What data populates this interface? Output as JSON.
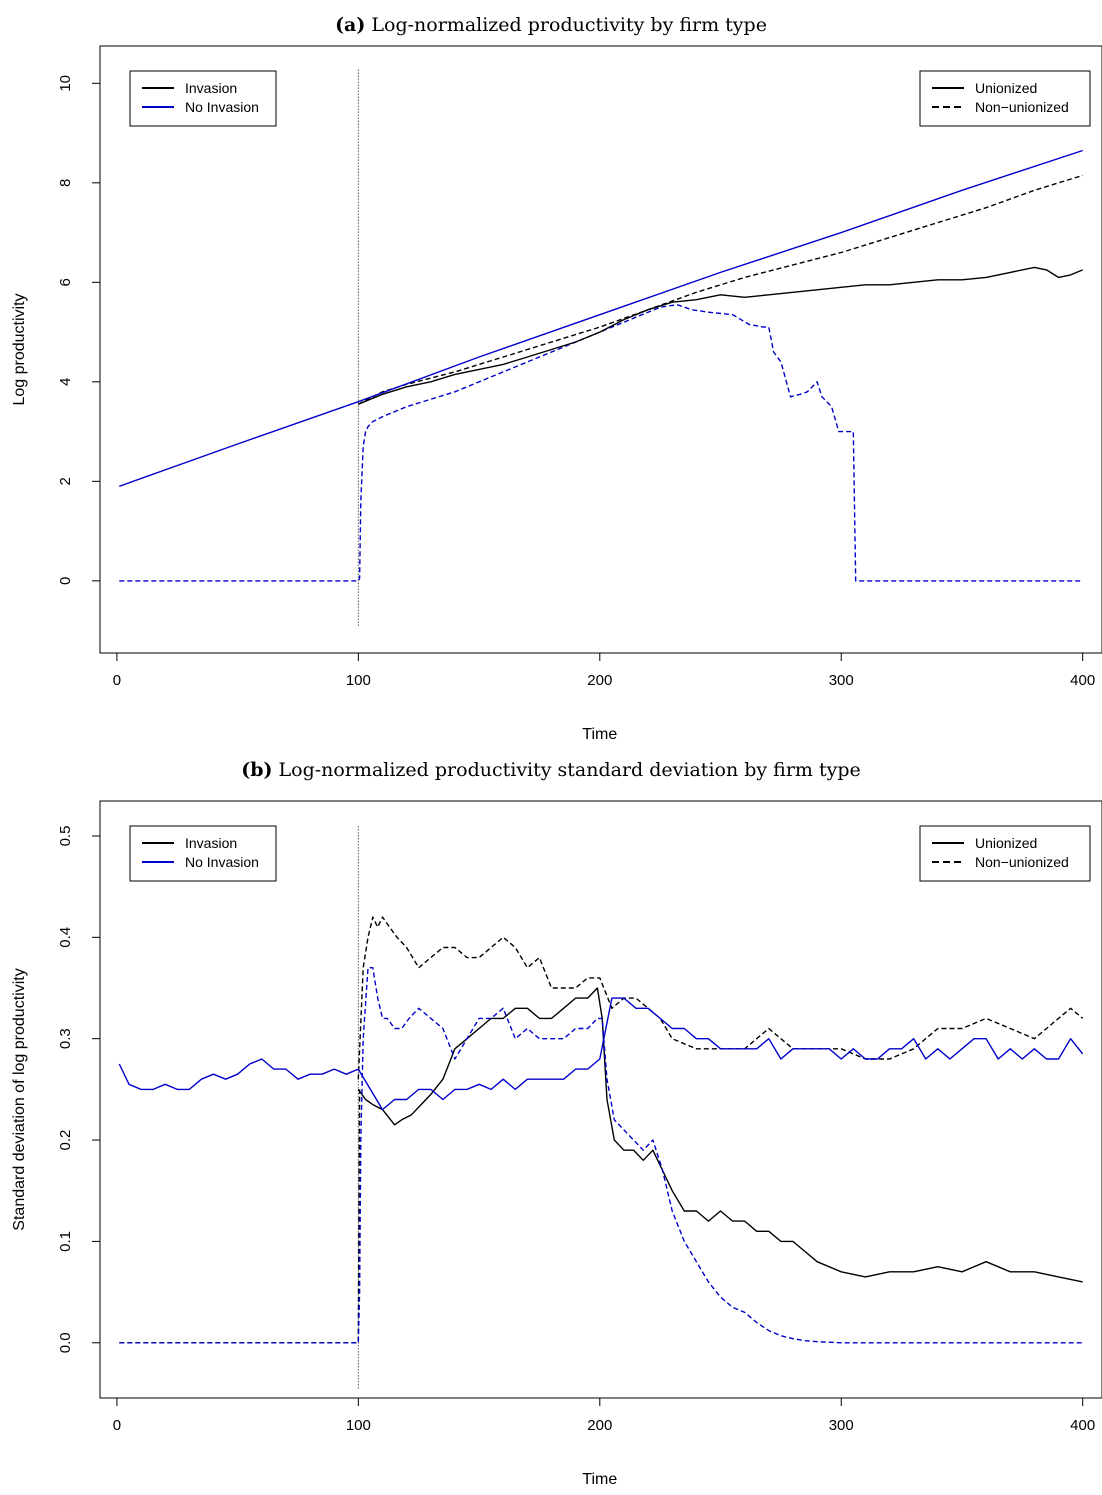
{
  "chart_data": [
    {
      "type": "line",
      "panel_label": "(a)",
      "title": "Log-normalized productivity by firm type",
      "xlabel": "Time",
      "ylabel": "Log productivity",
      "xlim": [
        -7,
        408
      ],
      "ylim": [
        -1.45,
        10.75
      ],
      "xticks": [
        0,
        100,
        200,
        300,
        400
      ],
      "yticks": [
        0,
        2,
        4,
        6,
        8,
        10
      ],
      "vline": {
        "x": 100,
        "y_range": [
          -0.9,
          10.3
        ],
        "style": "dotted"
      },
      "legend_color": {
        "position": "top-left",
        "entries": [
          "Invasion",
          "No Invasion"
        ],
        "colors": [
          "#000000",
          "#0000cc"
        ]
      },
      "legend_style": {
        "position": "top-right",
        "entries": [
          "Unionized",
          "Non−unionized"
        ],
        "dashes": [
          "solid",
          "dashed"
        ]
      },
      "series": [
        {
          "key": "no_invasion_non_union",
          "color": "#0000cc",
          "dash": "dashed",
          "x": [
            1,
            100,
            100.5,
            101,
            102,
            103,
            104,
            106,
            110,
            120,
            140,
            160,
            180,
            200,
            215,
            225,
            232,
            238,
            245,
            255,
            262,
            268,
            270,
            272,
            275,
            279,
            283,
            286,
            288,
            290,
            292,
            294,
            296,
            299,
            303,
            305,
            306,
            400
          ],
          "y": [
            0,
            0,
            0.05,
            1.6,
            2.7,
            3.0,
            3.1,
            3.2,
            3.3,
            3.5,
            3.8,
            4.2,
            4.6,
            5.0,
            5.3,
            5.5,
            5.55,
            5.45,
            5.4,
            5.35,
            5.15,
            5.1,
            5.1,
            4.6,
            4.4,
            3.7,
            3.75,
            3.8,
            3.9,
            4.0,
            3.7,
            3.6,
            3.5,
            3.0,
            3.0,
            3.0,
            0,
            0
          ]
        },
        {
          "key": "invasion_non_union",
          "color": "#000000",
          "dash": "dashed",
          "x": [
            100,
            110,
            120,
            140,
            160,
            180,
            200,
            220,
            240,
            260,
            280,
            300,
            320,
            340,
            360,
            380,
            400
          ],
          "y": [
            3.55,
            3.8,
            3.95,
            4.2,
            4.5,
            4.8,
            5.1,
            5.45,
            5.8,
            6.1,
            6.35,
            6.6,
            6.9,
            7.2,
            7.5,
            7.85,
            8.15
          ]
        },
        {
          "key": "invasion_union",
          "color": "#000000",
          "dash": "solid",
          "x": [
            100,
            110,
            120,
            130,
            140,
            150,
            160,
            170,
            180,
            190,
            200,
            210,
            220,
            230,
            240,
            250,
            260,
            270,
            280,
            290,
            300,
            310,
            320,
            330,
            340,
            350,
            360,
            370,
            380,
            385,
            390,
            395,
            400
          ],
          "y": [
            3.55,
            3.75,
            3.9,
            4.0,
            4.15,
            4.25,
            4.35,
            4.5,
            4.65,
            4.8,
            5.0,
            5.25,
            5.45,
            5.6,
            5.65,
            5.75,
            5.7,
            5.75,
            5.8,
            5.85,
            5.9,
            5.95,
            5.95,
            6.0,
            6.05,
            6.05,
            6.1,
            6.2,
            6.3,
            6.25,
            6.1,
            6.15,
            6.25
          ]
        },
        {
          "key": "no_invasion_union",
          "color": "#0000cc",
          "dash": "solid",
          "x": [
            1,
            50,
            100,
            150,
            200,
            250,
            300,
            350,
            400
          ],
          "y": [
            1.9,
            2.75,
            3.6,
            4.5,
            5.35,
            6.2,
            7.0,
            7.85,
            8.65
          ]
        }
      ]
    },
    {
      "type": "line",
      "panel_label": "(b)",
      "title": "Log-normalized productivity standard deviation by firm type",
      "xlabel": "Time",
      "ylabel": "Standard deviation of log productivity",
      "xlim": [
        -7,
        408
      ],
      "ylim": [
        -0.0545,
        0.5345
      ],
      "xticks": [
        0,
        100,
        200,
        300,
        400
      ],
      "yticks": [
        0.0,
        0.1,
        0.2,
        0.3,
        0.4,
        0.5
      ],
      "vline": {
        "x": 100,
        "y_range": [
          -0.045,
          0.51
        ],
        "style": "dotted"
      },
      "legend_color": {
        "position": "top-left",
        "entries": [
          "Invasion",
          "No Invasion"
        ],
        "colors": [
          "#000000",
          "#0000cc"
        ]
      },
      "legend_style": {
        "position": "top-right",
        "entries": [
          "Unionized",
          "Non−unionized"
        ],
        "dashes": [
          "solid",
          "dashed"
        ]
      },
      "series": [
        {
          "key": "zero_line",
          "color": "#000000",
          "dash": "dashed",
          "x": [
            1,
            100,
            100.5
          ],
          "y": [
            0,
            0,
            0.25
          ]
        },
        {
          "key": "invasion_non_union",
          "color": "#000000",
          "dash": "dashed",
          "x": [
            100,
            102,
            104,
            106,
            108,
            110,
            113,
            116,
            120,
            125,
            130,
            135,
            140,
            145,
            150,
            155,
            160,
            165,
            170,
            175,
            180,
            185,
            190,
            195,
            200,
            205,
            210,
            215,
            220,
            225,
            230,
            240,
            250,
            260,
            270,
            280,
            290,
            300,
            310,
            320,
            330,
            340,
            350,
            360,
            370,
            380,
            390,
            395,
            400
          ],
          "y": [
            0.26,
            0.37,
            0.4,
            0.42,
            0.41,
            0.42,
            0.41,
            0.4,
            0.39,
            0.37,
            0.38,
            0.39,
            0.39,
            0.38,
            0.38,
            0.39,
            0.4,
            0.39,
            0.37,
            0.38,
            0.35,
            0.35,
            0.35,
            0.36,
            0.36,
            0.33,
            0.34,
            0.34,
            0.33,
            0.32,
            0.3,
            0.29,
            0.29,
            0.29,
            0.31,
            0.29,
            0.29,
            0.29,
            0.28,
            0.28,
            0.29,
            0.31,
            0.31,
            0.32,
            0.31,
            0.3,
            0.32,
            0.33,
            0.32
          ]
        },
        {
          "key": "invasion_union",
          "color": "#000000",
          "dash": "solid",
          "x": [
            100,
            103,
            106,
            110,
            115,
            118,
            122,
            126,
            130,
            135,
            140,
            145,
            150,
            155,
            160,
            165,
            170,
            175,
            180,
            185,
            190,
            195,
            199,
            201,
            203,
            206,
            210,
            214,
            218,
            222,
            226,
            230,
            235,
            240,
            245,
            250,
            255,
            260,
            265,
            270,
            275,
            280,
            285,
            290,
            300,
            310,
            320,
            330,
            340,
            350,
            360,
            370,
            380,
            390,
            400
          ],
          "y": [
            0.25,
            0.24,
            0.235,
            0.23,
            0.215,
            0.22,
            0.225,
            0.235,
            0.245,
            0.26,
            0.29,
            0.3,
            0.31,
            0.32,
            0.32,
            0.33,
            0.33,
            0.32,
            0.32,
            0.33,
            0.34,
            0.34,
            0.35,
            0.32,
            0.24,
            0.2,
            0.19,
            0.19,
            0.18,
            0.19,
            0.17,
            0.15,
            0.13,
            0.13,
            0.12,
            0.13,
            0.12,
            0.12,
            0.11,
            0.11,
            0.1,
            0.1,
            0.09,
            0.08,
            0.07,
            0.065,
            0.07,
            0.07,
            0.075,
            0.07,
            0.08,
            0.07,
            0.07,
            0.065,
            0.06
          ]
        },
        {
          "key": "no_invasion_non_union",
          "color": "#0000cc",
          "dash": "dashed",
          "x": [
            1,
            100,
            100.5,
            101,
            102,
            104,
            106,
            108,
            110,
            112,
            115,
            118,
            121,
            125,
            130,
            135,
            140,
            145,
            150,
            155,
            160,
            165,
            170,
            175,
            180,
            185,
            190,
            195,
            199,
            201,
            203,
            206,
            210,
            214,
            218,
            222,
            226,
            230,
            235,
            240,
            245,
            250,
            255,
            260,
            265,
            270,
            275,
            280,
            285,
            290,
            300,
            400
          ],
          "y": [
            0,
            0,
            0.05,
            0.2,
            0.3,
            0.37,
            0.37,
            0.34,
            0.32,
            0.32,
            0.31,
            0.31,
            0.32,
            0.33,
            0.32,
            0.31,
            0.28,
            0.3,
            0.32,
            0.32,
            0.33,
            0.3,
            0.31,
            0.3,
            0.3,
            0.3,
            0.31,
            0.31,
            0.32,
            0.32,
            0.26,
            0.22,
            0.21,
            0.2,
            0.19,
            0.2,
            0.17,
            0.13,
            0.1,
            0.08,
            0.06,
            0.045,
            0.035,
            0.03,
            0.02,
            0.012,
            0.007,
            0.004,
            0.002,
            0.001,
            0,
            0
          ]
        },
        {
          "key": "no_invasion_union",
          "color": "#0000cc",
          "dash": "solid",
          "x": [
            1,
            5,
            10,
            15,
            20,
            25,
            30,
            35,
            40,
            45,
            50,
            55,
            60,
            65,
            70,
            75,
            80,
            85,
            90,
            95,
            100,
            105,
            110,
            115,
            120,
            125,
            130,
            135,
            140,
            145,
            150,
            155,
            160,
            165,
            170,
            175,
            180,
            185,
            190,
            195,
            200,
            205,
            210,
            215,
            220,
            225,
            230,
            235,
            240,
            245,
            250,
            255,
            260,
            265,
            270,
            275,
            280,
            285,
            290,
            295,
            300,
            305,
            310,
            315,
            320,
            325,
            330,
            335,
            340,
            345,
            350,
            355,
            360,
            365,
            370,
            375,
            380,
            385,
            390,
            395,
            400
          ],
          "y": [
            0.275,
            0.255,
            0.25,
            0.25,
            0.255,
            0.25,
            0.25,
            0.26,
            0.265,
            0.26,
            0.265,
            0.275,
            0.28,
            0.27,
            0.27,
            0.26,
            0.265,
            0.265,
            0.27,
            0.265,
            0.27,
            0.25,
            0.23,
            0.24,
            0.24,
            0.25,
            0.25,
            0.24,
            0.25,
            0.25,
            0.255,
            0.25,
            0.26,
            0.25,
            0.26,
            0.26,
            0.26,
            0.26,
            0.27,
            0.27,
            0.28,
            0.34,
            0.34,
            0.33,
            0.33,
            0.32,
            0.31,
            0.31,
            0.3,
            0.3,
            0.29,
            0.29,
            0.29,
            0.29,
            0.3,
            0.28,
            0.29,
            0.29,
            0.29,
            0.29,
            0.28,
            0.29,
            0.28,
            0.28,
            0.29,
            0.29,
            0.3,
            0.28,
            0.29,
            0.28,
            0.29,
            0.3,
            0.3,
            0.28,
            0.29,
            0.28,
            0.29,
            0.28,
            0.28,
            0.3,
            0.285
          ]
        }
      ]
    }
  ]
}
